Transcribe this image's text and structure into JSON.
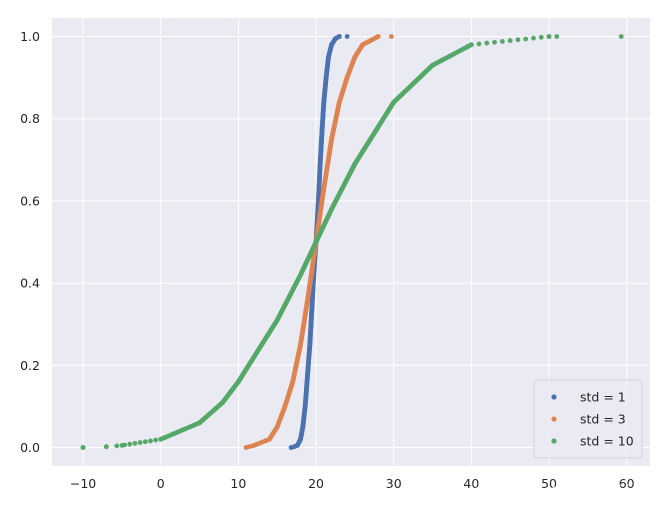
{
  "chart_data": {
    "type": "scatter",
    "title": "",
    "xlabel": "",
    "ylabel": "",
    "xlim": [
      -14,
      63
    ],
    "ylim": [
      -0.045,
      1.045
    ],
    "xticks": [
      -10,
      0,
      10,
      20,
      30,
      40,
      50,
      60
    ],
    "yticks": [
      0.0,
      0.2,
      0.4,
      0.6,
      0.8,
      1.0
    ],
    "xtick_labels": [
      "−10",
      "0",
      "10",
      "20",
      "30",
      "40",
      "50",
      "60"
    ],
    "ytick_labels": [
      "0.0",
      "0.2",
      "0.4",
      "0.6",
      "0.8",
      "1.0"
    ],
    "grid": true,
    "style": "seaborn-darkgrid",
    "legend": {
      "position": "bottom-right"
    },
    "series": [
      {
        "name": "std = 1",
        "color": "#4c72b0",
        "mean": 20,
        "std": 1,
        "points": [
          [
            16.8,
            0.0
          ],
          [
            17.2,
            0.002
          ],
          [
            17.6,
            0.005
          ],
          [
            18.0,
            0.02
          ],
          [
            18.3,
            0.05
          ],
          [
            18.6,
            0.1
          ],
          [
            18.8,
            0.15
          ],
          [
            19.0,
            0.2
          ],
          [
            19.2,
            0.25
          ],
          [
            19.5,
            0.35
          ],
          [
            19.7,
            0.42
          ],
          [
            20.0,
            0.5
          ],
          [
            20.3,
            0.6
          ],
          [
            20.5,
            0.68
          ],
          [
            20.8,
            0.78
          ],
          [
            21.0,
            0.84
          ],
          [
            21.3,
            0.9
          ],
          [
            21.6,
            0.95
          ],
          [
            22.0,
            0.98
          ],
          [
            22.5,
            0.995
          ],
          [
            23.0,
            1.0
          ],
          [
            24.0,
            1.0
          ]
        ]
      },
      {
        "name": "std = 3",
        "color": "#dd8452",
        "mean": 20,
        "std": 3,
        "points": [
          [
            11.0,
            0.0
          ],
          [
            12.0,
            0.005
          ],
          [
            14.0,
            0.02
          ],
          [
            15.0,
            0.05
          ],
          [
            16.0,
            0.1
          ],
          [
            17.0,
            0.16
          ],
          [
            18.0,
            0.25
          ],
          [
            19.0,
            0.37
          ],
          [
            20.0,
            0.5
          ],
          [
            21.0,
            0.63
          ],
          [
            22.0,
            0.75
          ],
          [
            23.0,
            0.84
          ],
          [
            24.0,
            0.9
          ],
          [
            25.0,
            0.95
          ],
          [
            26.0,
            0.98
          ],
          [
            27.0,
            0.99
          ],
          [
            28.0,
            1.0
          ],
          [
            29.7,
            1.0
          ]
        ]
      },
      {
        "name": "std = 10",
        "color": "#55a868",
        "mean": 20,
        "std": 10,
        "points": [
          [
            -10.0,
            0.0
          ],
          [
            -7.0,
            0.002
          ],
          [
            -5.0,
            0.005
          ],
          [
            0.0,
            0.02
          ],
          [
            5.0,
            0.06
          ],
          [
            8.0,
            0.11
          ],
          [
            10.0,
            0.16
          ],
          [
            12.0,
            0.22
          ],
          [
            15.0,
            0.31
          ],
          [
            18.0,
            0.42
          ],
          [
            20.0,
            0.5
          ],
          [
            22.0,
            0.58
          ],
          [
            25.0,
            0.69
          ],
          [
            28.0,
            0.78
          ],
          [
            30.0,
            0.84
          ],
          [
            35.0,
            0.93
          ],
          [
            40.0,
            0.98
          ],
          [
            45.0,
            0.99
          ],
          [
            50.0,
            1.0
          ],
          [
            51.0,
            1.0
          ],
          [
            59.3,
            1.0
          ]
        ]
      }
    ]
  }
}
